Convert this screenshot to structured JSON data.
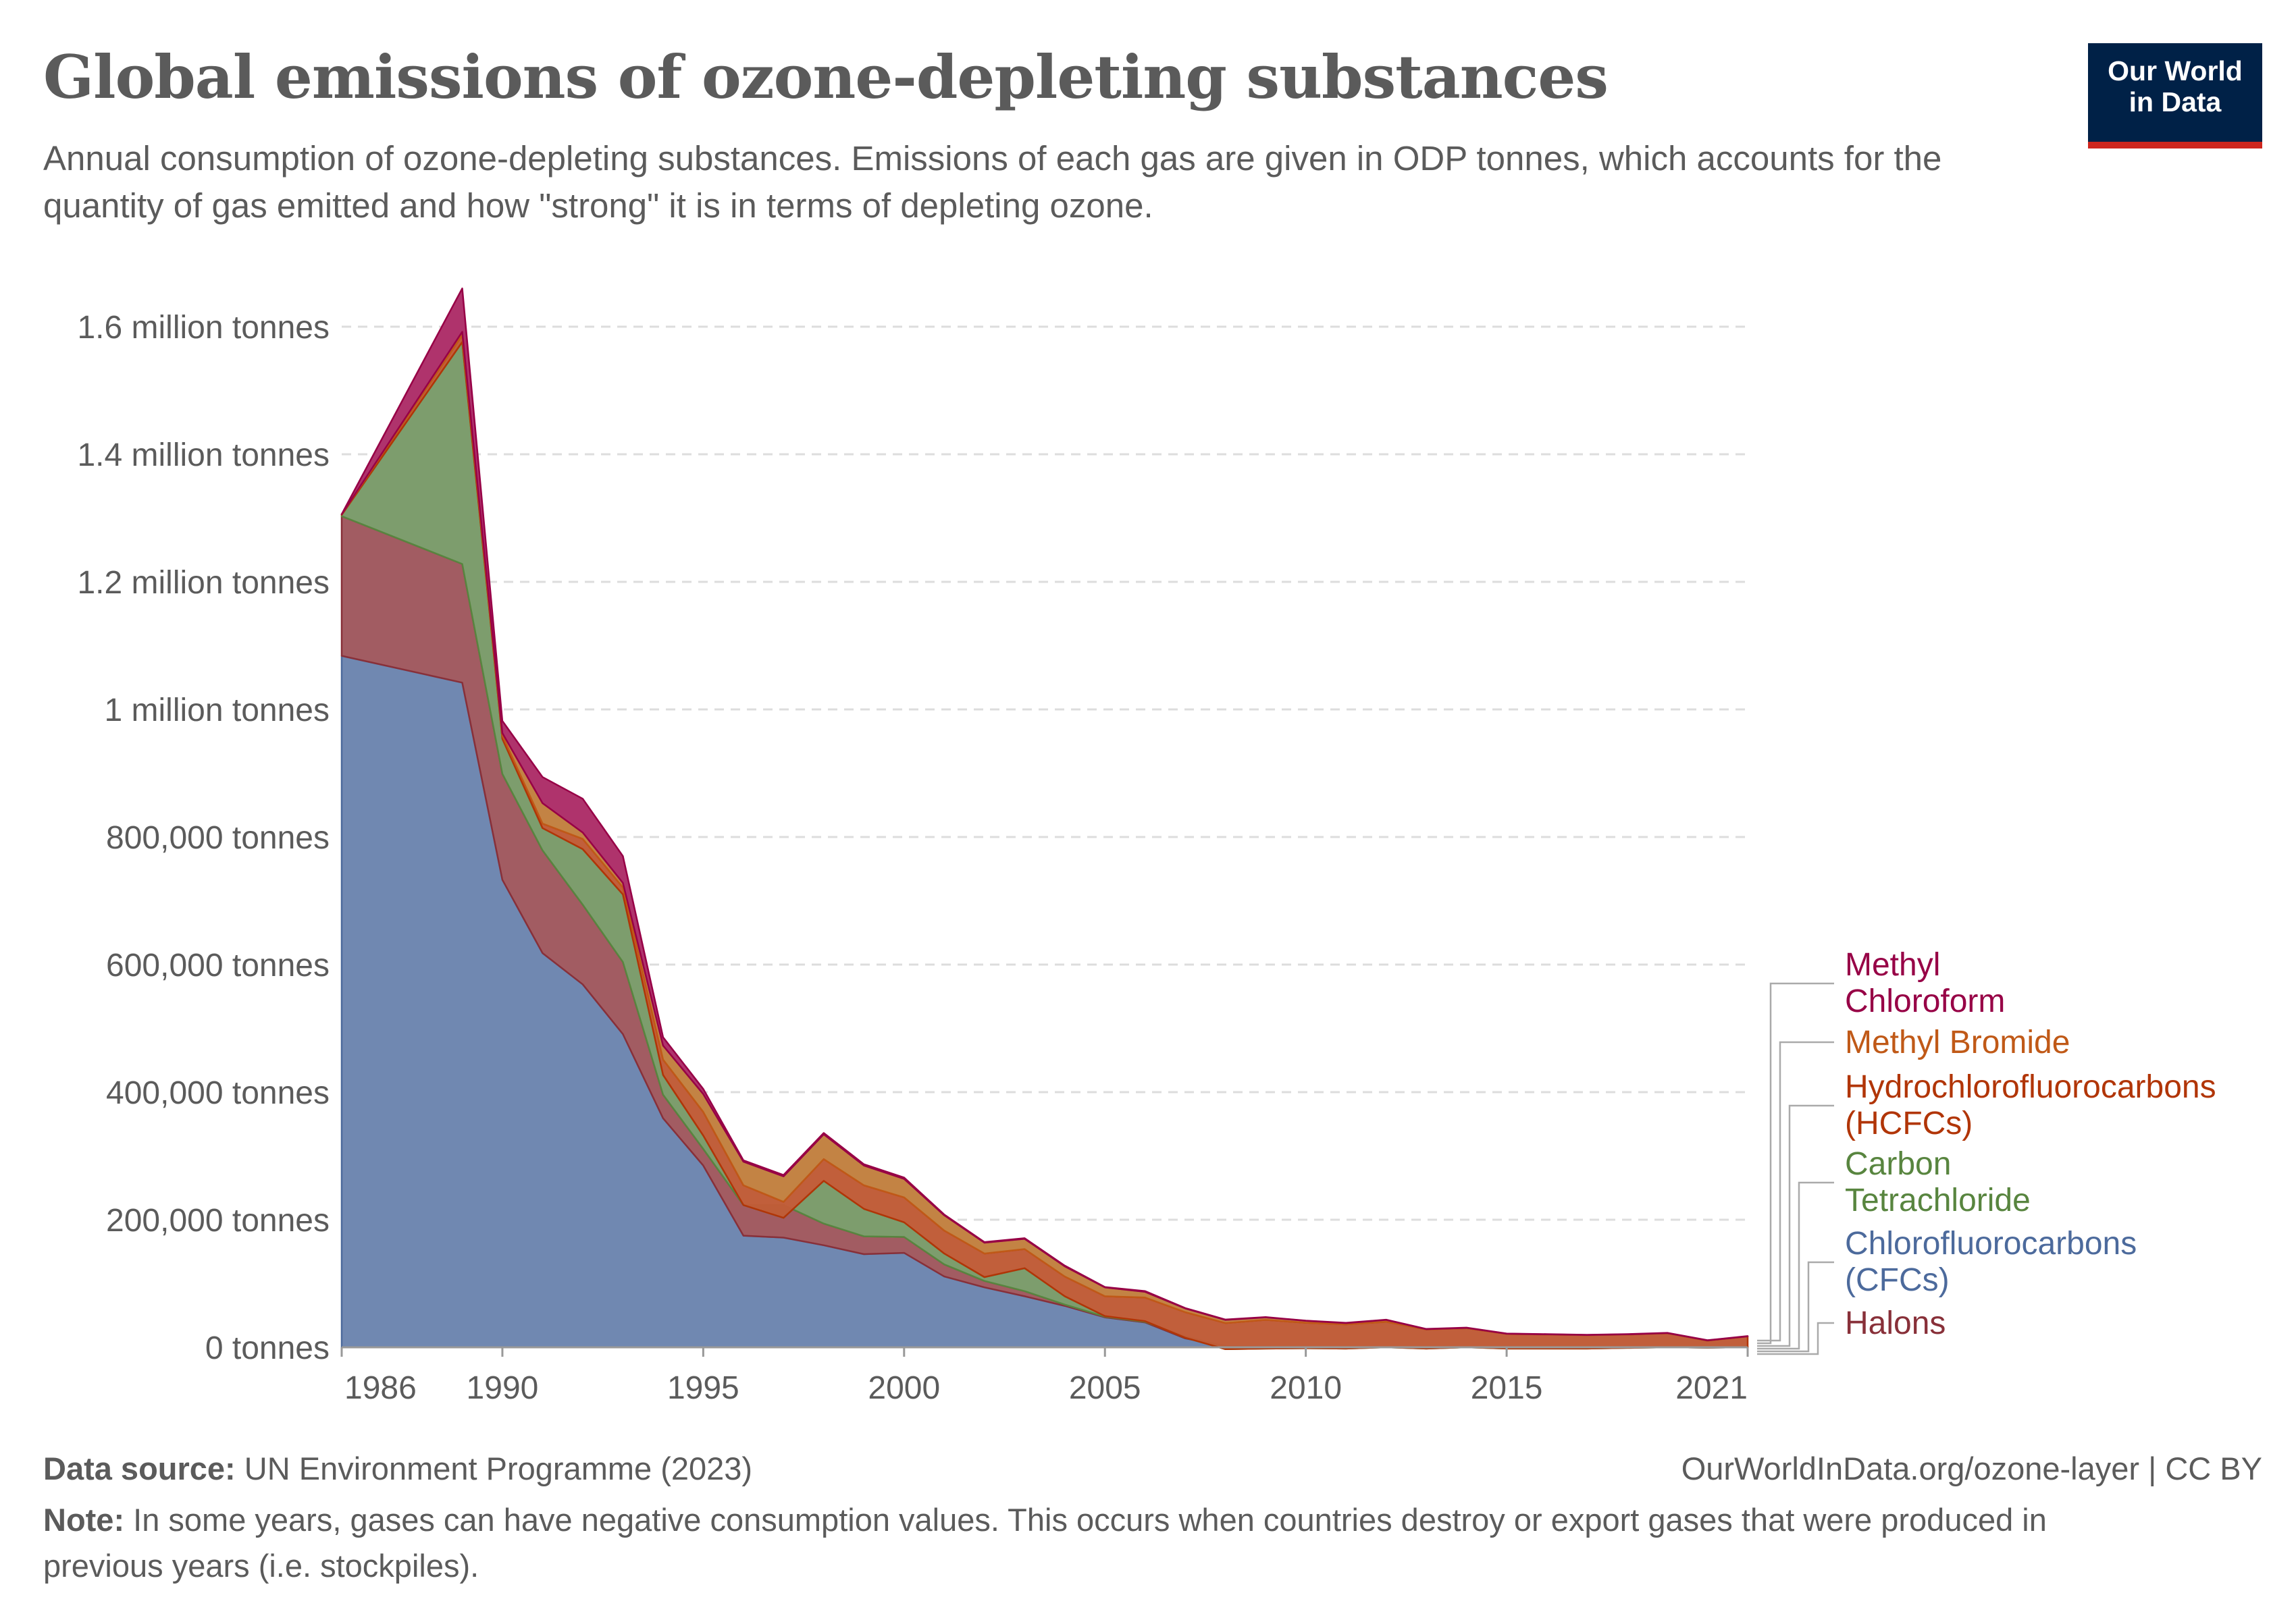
{
  "header": {
    "title": "Global emissions of ozone-depleting substances",
    "subtitle": "Annual consumption of ozone-depleting substances. Emissions of each gas are given in  ODP tonnes, which accounts for the quantity of gas emitted and how \"strong\" it is in terms of depleting ozone.",
    "logo_line1": "Our World",
    "logo_line2": "in Data"
  },
  "footer": {
    "source_label": "Data source:",
    "source_text": " UN Environment Programme (2023)",
    "url_text": "OurWorldInData.org/ozone-layer  | CC BY",
    "note_label": "Note:",
    "note_text": " In some years, gases can have negative consumption values. This occurs when countries destroy or export gases that were produced in previous years (i.e. stockpiles)."
  },
  "chart_data": {
    "type": "area",
    "stacked": true,
    "title": "Global emissions of ozone-depleting substances",
    "xlabel": "",
    "ylabel": "",
    "unit": "ODP tonnes (thousands in series values)",
    "value_scale": 1000,
    "xlim": [
      1986,
      2021
    ],
    "ylim": [
      0,
      1600000
    ],
    "grid": "horizontal-dashed",
    "legend_placement": "right",
    "x_ticks": [
      1986,
      1990,
      1995,
      2000,
      2005,
      2010,
      2015,
      2021
    ],
    "y_ticks": [
      {
        "value": 0,
        "label": "0 tonnes"
      },
      {
        "value": 200000,
        "label": "200,000 tonnes"
      },
      {
        "value": 400000,
        "label": "400,000 tonnes"
      },
      {
        "value": 600000,
        "label": "600,000 tonnes"
      },
      {
        "value": 800000,
        "label": "800,000 tonnes"
      },
      {
        "value": 1000000,
        "label": "1 million tonnes"
      },
      {
        "value": 1200000,
        "label": "1.2 million tonnes"
      },
      {
        "value": 1400000,
        "label": "1.4 million tonnes"
      },
      {
        "value": 1600000,
        "label": "1.6 million tonnes"
      }
    ],
    "x": [
      1986,
      1989,
      1990,
      1991,
      1992,
      1993,
      1994,
      1995,
      1996,
      1997,
      1998,
      1999,
      2000,
      2001,
      2002,
      2003,
      2004,
      2005,
      2006,
      2007,
      2008,
      2009,
      2010,
      2011,
      2012,
      2013,
      2014,
      2015,
      2016,
      2017,
      2018,
      2019,
      2020,
      2021
    ],
    "series": [
      {
        "name": "Chlorofluorocarbons (CFCs)",
        "legend_lines": [
          "Chlorofluorocarbons",
          "(CFCs)"
        ],
        "fill": "#6d86af",
        "stroke": "#4c6a9c",
        "label_color": "#4c6a9c",
        "values": [
          1084,
          1042,
          733,
          618,
          569,
          491,
          359,
          285,
          175,
          172,
          160,
          146,
          148,
          111,
          94,
          80,
          65,
          47,
          39,
          14,
          2,
          1,
          0.5,
          -1,
          0,
          -1,
          0,
          -1,
          -1,
          -1,
          0,
          0,
          -0.5,
          0
        ]
      },
      {
        "name": "Halons",
        "legend_lines": [
          "Halons"
        ],
        "fill": "#a0595f",
        "stroke": "#883039",
        "label_color": "#883039",
        "values": [
          219,
          186,
          166,
          161,
          125,
          113,
          37,
          26,
          48,
          51,
          34,
          28,
          25,
          19,
          10,
          8,
          2,
          1,
          1,
          3,
          -1,
          -1,
          -1,
          0,
          0,
          0,
          0,
          0,
          0,
          0,
          0,
          0,
          0,
          0
        ]
      },
      {
        "name": "Carbon Tetrachloride",
        "legend_lines": [
          "Carbon",
          "Tetrachloride"
        ],
        "fill": "#7a9b6a",
        "stroke": "#58853f",
        "label_color": "#58853f",
        "values": [
          2,
          348,
          55,
          35,
          87,
          106,
          31,
          21,
          0,
          -20,
          67,
          43,
          23,
          17,
          6,
          36,
          13,
          1,
          1,
          -2,
          -4,
          -2,
          -1,
          -1,
          0,
          -1,
          0,
          -1,
          -1,
          -1,
          -1,
          0,
          0,
          0
        ]
      },
      {
        "name": "Hydrochlorofluorocarbons (HCFCs)",
        "legend_lines": [
          "Hydrochlorofluorocarbons",
          "(HCFCs)"
        ],
        "fill": "#c05c37",
        "stroke": "#b13507",
        "label_color": "#b13507",
        "values": [
          1,
          11,
          5,
          7,
          16,
          11,
          24,
          37,
          31,
          25,
          34,
          37,
          39,
          36,
          37,
          30,
          31,
          31,
          37,
          40,
          41,
          45,
          40,
          38,
          40,
          30,
          30,
          23,
          22,
          21,
          21,
          22,
          11,
          17
        ]
      },
      {
        "name": "Methyl Bromide",
        "legend_lines": [
          "Methyl Bromide"
        ],
        "fill": "#c28140",
        "stroke": "#c05917",
        "label_color": "#c05917",
        "values": [
          0,
          5,
          4,
          32,
          10,
          7,
          22,
          28,
          37,
          40,
          39,
          31,
          29,
          24,
          17,
          16,
          16,
          14,
          9,
          6,
          5,
          4,
          3,
          2,
          3,
          0.5,
          0.5,
          0.3,
          0.3,
          0.3,
          0.3,
          0.3,
          0.3,
          0.3
        ]
      },
      {
        "name": "Methyl Chloroform",
        "legend_lines": [
          "Methyl",
          "Chloroform"
        ],
        "fill": "#ad2f69",
        "stroke": "#970046",
        "label_color": "#970046",
        "values": [
          0,
          68,
          19,
          41,
          53,
          42,
          13,
          8,
          2,
          2,
          2,
          2,
          2,
          1,
          1,
          1,
          1,
          0.5,
          1,
          0.5,
          0.5,
          0.3,
          0.3,
          0.3,
          0.3,
          0.3,
          0.3,
          0.3,
          0.3,
          0.3,
          0.3,
          0.3,
          0.3,
          0.3
        ]
      }
    ],
    "legend_order": [
      "Methyl Chloroform",
      "Methyl Bromide",
      "Hydrochlorofluorocarbons (HCFCs)",
      "Carbon Tetrachloride",
      "Chlorofluorocarbons (CFCs)",
      "Halons"
    ]
  }
}
